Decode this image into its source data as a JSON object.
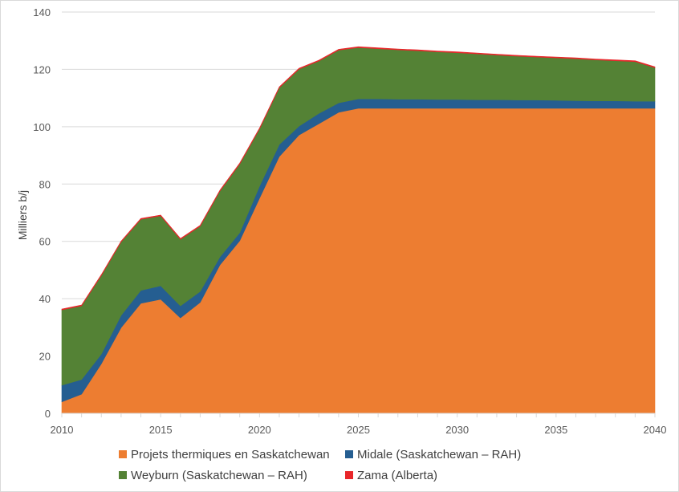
{
  "chart_data": {
    "type": "area",
    "stacked": true,
    "title": "",
    "xlabel": "",
    "ylabel": "Milliers b/j",
    "ylim": [
      0,
      140
    ],
    "xlim": [
      2010,
      2040
    ],
    "grid": true,
    "legend_position": "bottom",
    "y_ticks": [
      0,
      20,
      40,
      60,
      80,
      100,
      120,
      140
    ],
    "x_ticks": [
      2010,
      2015,
      2020,
      2025,
      2030,
      2035,
      2040
    ],
    "x": [
      2010,
      2011,
      2012,
      2013,
      2014,
      2015,
      2016,
      2017,
      2018,
      2019,
      2020,
      2021,
      2022,
      2023,
      2024,
      2025,
      2026,
      2027,
      2028,
      2029,
      2030,
      2031,
      2032,
      2033,
      2034,
      2035,
      2036,
      2037,
      2038,
      2039,
      2040
    ],
    "series": [
      {
        "name": "Projets thermiques en Saskatchewan",
        "color": "#ED7D31",
        "values": [
          4.0,
          6.7,
          17.3,
          29.9,
          38.4,
          39.8,
          33.3,
          38.7,
          51.8,
          60.2,
          75.0,
          89.6,
          97.1,
          101.0,
          105.0,
          106.4,
          106.4,
          106.4,
          106.4,
          106.4,
          106.4,
          106.4,
          106.4,
          106.4,
          106.4,
          106.4,
          106.4,
          106.4,
          106.4,
          106.4,
          106.4
        ]
      },
      {
        "name": "Midale (Saskatchewan – RAH)",
        "color": "#255E91",
        "values": [
          5.8,
          5.1,
          3.4,
          4.3,
          4.5,
          4.7,
          4.2,
          3.8,
          2.8,
          2.8,
          4.2,
          4.2,
          3.1,
          3.6,
          3.3,
          3.3,
          3.3,
          3.2,
          3.2,
          3.1,
          3.1,
          3.0,
          3.0,
          2.9,
          2.9,
          2.8,
          2.7,
          2.6,
          2.6,
          2.5,
          2.5
        ]
      },
      {
        "name": "Weyburn (Saskatchewan – RAH)",
        "color": "#548235",
        "values": [
          26.3,
          25.7,
          27.4,
          25.6,
          24.8,
          24.4,
          23.2,
          22.8,
          23.0,
          24.0,
          20.0,
          19.8,
          19.9,
          18.3,
          18.4,
          17.9,
          17.5,
          17.2,
          16.9,
          16.6,
          16.3,
          16.0,
          15.6,
          15.3,
          15.0,
          14.8,
          14.6,
          14.3,
          14.0,
          13.8,
          11.7
        ]
      },
      {
        "name": "Zama (Alberta)",
        "color": "#E8262A",
        "values": [
          0.3,
          0.3,
          0.3,
          0.3,
          0.3,
          0.3,
          0.3,
          0.3,
          0.3,
          0.3,
          0.3,
          0.3,
          0.3,
          0.3,
          0.3,
          0.3,
          0.3,
          0.3,
          0.3,
          0.3,
          0.3,
          0.3,
          0.3,
          0.3,
          0.3,
          0.3,
          0.3,
          0.3,
          0.3,
          0.3,
          0.3
        ]
      }
    ]
  },
  "legend": {
    "items": [
      {
        "label": "Projets thermiques en Saskatchewan",
        "color": "#ED7D31"
      },
      {
        "label": "Midale (Saskatchewan – RAH)",
        "color": "#255E91"
      },
      {
        "label": "Weyburn (Saskatchewan – RAH)",
        "color": "#548235"
      },
      {
        "label": "Zama (Alberta)",
        "color": "#E8262A"
      }
    ]
  },
  "axes": {
    "ylabel": "Milliers b/j"
  }
}
